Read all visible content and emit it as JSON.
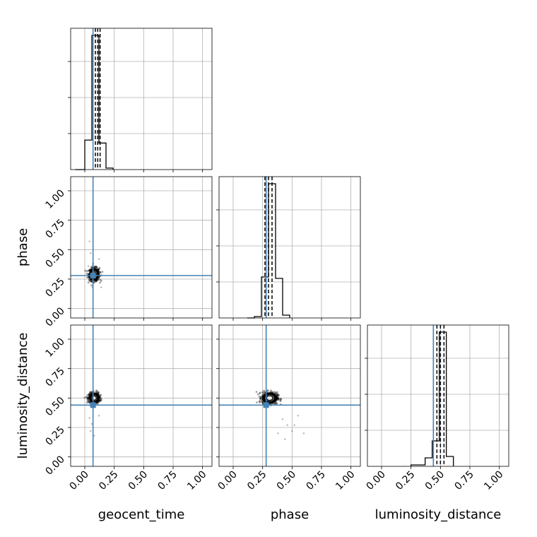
{
  "chart_data": {
    "type": "corner",
    "parameters": [
      "geocent_time",
      "phase",
      "luminosity_distance"
    ],
    "axis_labels": {
      "x": [
        "geocent_time",
        "phase",
        "luminosity_distance"
      ],
      "y": [
        "phase",
        "luminosity_distance"
      ]
    },
    "tick_values": [
      0.0,
      0.25,
      0.5,
      0.75,
      1.0
    ],
    "tick_labels": [
      "0.00",
      "0.25",
      "0.50",
      "0.75",
      "1.00"
    ],
    "xlim": [
      -0.12,
      1.08
    ],
    "ylim": [
      -0.08,
      1.12
    ],
    "grid": true,
    "injection_values": {
      "geocent_time": 0.07,
      "phase": 0.28,
      "luminosity_distance": 0.44
    },
    "quantiles": {
      "geocent_time": [
        0.09,
        0.11,
        0.13
      ],
      "phase": [
        0.27,
        0.3,
        0.33
      ],
      "luminosity_distance": [
        0.47,
        0.5,
        0.53
      ]
    },
    "histograms": {
      "geocent_time": {
        "bin_edges": [
          -0.08,
          0.0,
          0.06,
          0.12,
          0.18,
          0.24
        ],
        "counts": [
          0,
          0.2,
          0.91,
          0.18,
          0.01
        ]
      },
      "phase": {
        "bin_edges": [
          0.12,
          0.18,
          0.24,
          0.3,
          0.36,
          0.42,
          0.48
        ],
        "counts": [
          0.0,
          0.01,
          0.29,
          0.95,
          0.28,
          0.02
        ]
      },
      "luminosity_distance": {
        "bin_edges": [
          0.25,
          0.37,
          0.43,
          0.49,
          0.55,
          0.61
        ],
        "counts": [
          0.01,
          0.06,
          0.18,
          0.95,
          0.07
        ]
      }
    },
    "scatter_2d": {
      "phase_vs_geocent_time": {
        "center": [
          0.08,
          0.29
        ],
        "spread": [
          0.04,
          0.05
        ],
        "outliers": [
          [
            0.04,
            0.57
          ],
          [
            0.05,
            0.47
          ],
          [
            0.12,
            0.42
          ],
          [
            0.03,
            0.36
          ],
          [
            0.14,
            0.18
          ]
        ]
      },
      "luminosity_distance_vs_geocent_time": {
        "center": [
          0.08,
          0.5
        ],
        "spread": [
          0.04,
          0.04
        ],
        "outliers": [
          [
            0.06,
            0.28
          ],
          [
            0.05,
            0.22
          ],
          [
            0.08,
            0.18
          ],
          [
            0.12,
            0.35
          ],
          [
            0.04,
            0.33
          ]
        ]
      },
      "luminosity_distance_vs_phase": {
        "center": [
          0.31,
          0.5
        ],
        "spread": [
          0.06,
          0.045
        ],
        "outliers": [
          [
            0.42,
            0.32
          ],
          [
            0.46,
            0.27
          ],
          [
            0.5,
            0.22
          ],
          [
            0.55,
            0.35
          ],
          [
            0.6,
            0.2
          ],
          [
            0.38,
            0.2
          ],
          [
            0.44,
            0.15
          ],
          [
            0.52,
            0.27
          ]
        ]
      }
    }
  }
}
